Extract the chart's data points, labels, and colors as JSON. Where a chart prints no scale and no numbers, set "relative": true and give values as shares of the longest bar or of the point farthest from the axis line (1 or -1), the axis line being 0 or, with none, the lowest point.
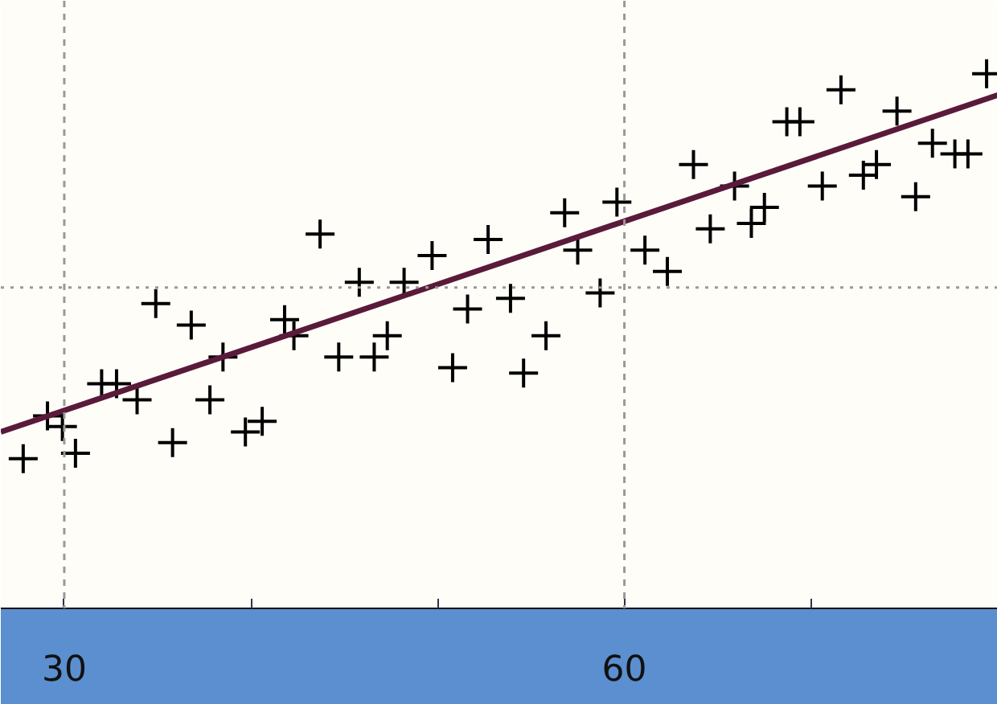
{
  "chart_data": {
    "type": "scatter",
    "relative": true,
    "xlim": [
      26.6,
      80
    ],
    "xticks": [
      30,
      {
        "value": 40,
        "label": null
      },
      {
        "value": 50,
        "label": null
      },
      60,
      {
        "value": 70,
        "label": null
      },
      {
        "value": 80,
        "label": null
      }
    ],
    "x": [
      27.8,
      29.1,
      30.6,
      29.9,
      32.0,
      32.8,
      33.9,
      34.9,
      35.8,
      36.8,
      37.8,
      38.5,
      39.7,
      40.6,
      41.8,
      42.3,
      43.7,
      44.7,
      45.8,
      46.6,
      47.3,
      48.2,
      49.7,
      50.8,
      51.6,
      52.7,
      53.9,
      54.6,
      55.8,
      56.8,
      57.5,
      58.7,
      59.6,
      61.1,
      62.3,
      63.7,
      64.6,
      65.9,
      66.8,
      67.5,
      68.7,
      69.4,
      70.6,
      71.6,
      72.8,
      73.5,
      74.6,
      75.6,
      76.5,
      77.7,
      78.4,
      79.4
    ],
    "series": [
      {
        "marker": "cross",
        "color": "#000000",
        "values": [
          0.28,
          0.36,
          0.29,
          0.34,
          0.42,
          0.42,
          0.39,
          0.57,
          0.31,
          0.53,
          0.39,
          0.47,
          0.33,
          0.35,
          0.54,
          0.51,
          0.7,
          0.47,
          0.61,
          0.47,
          0.51,
          0.61,
          0.66,
          0.45,
          0.56,
          0.69,
          0.58,
          0.44,
          0.51,
          0.74,
          0.67,
          0.59,
          0.76,
          0.67,
          0.63,
          0.83,
          0.71,
          0.79,
          0.72,
          0.75,
          0.91,
          0.91,
          0.79,
          0.97,
          0.81,
          0.83,
          0.93,
          0.77,
          0.87,
          0.85,
          0.85,
          1.0
        ]
      },
      {
        "type": "line",
        "color": "#5a1a3a",
        "x": [
          26.6,
          80
        ],
        "values": [
          0.33,
          0.96
        ]
      }
    ],
    "ref_lines": [
      {
        "axis": "x",
        "value": 30,
        "color": "#999999",
        "line_style": "dashed"
      },
      {
        "axis": "x",
        "value": 60,
        "color": "#999999",
        "line_style": "dashed"
      },
      {
        "axis": "y",
        "value": 0.6,
        "color": "#999999",
        "line_style": "dotted"
      }
    ]
  }
}
